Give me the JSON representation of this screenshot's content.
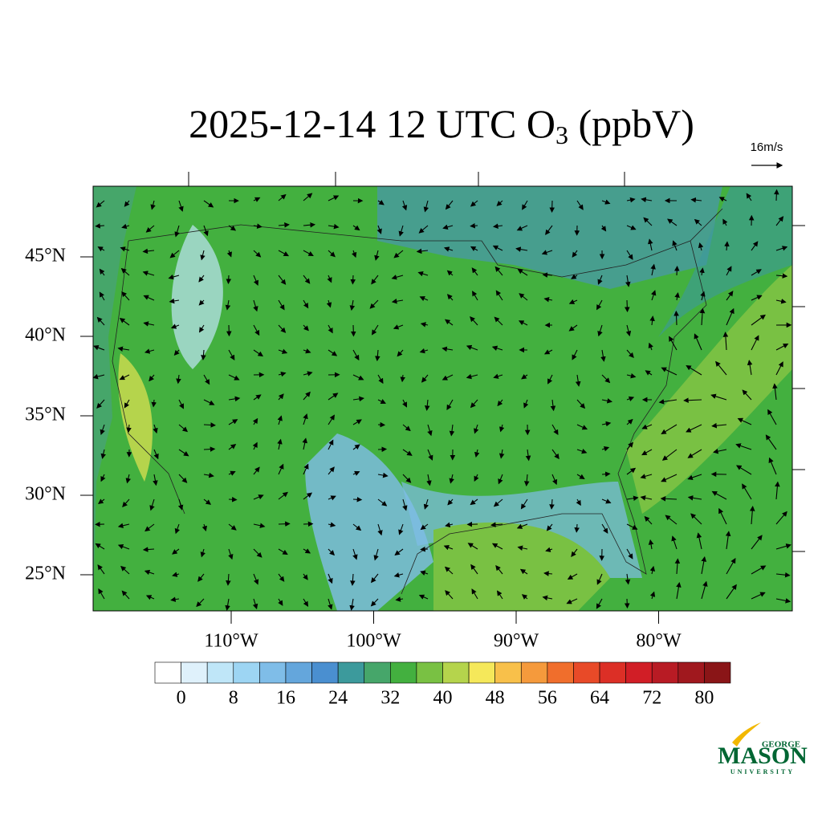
{
  "title": {
    "prefix": "2025-12-14 12 UTC O",
    "subscript": "3",
    "suffix": " (ppbV)"
  },
  "vector_reference": "16m/s",
  "map": {
    "lat_ticks": [
      {
        "value": 45,
        "label": "45°N"
      },
      {
        "value": 40,
        "label": "40°N"
      },
      {
        "value": 35,
        "label": "35°N"
      },
      {
        "value": 30,
        "label": "30°N"
      },
      {
        "value": 25,
        "label": "25°N"
      }
    ],
    "lon_ticks": [
      {
        "value": -110,
        "label": "110°W"
      },
      {
        "value": -100,
        "label": "100°W"
      },
      {
        "value": -90,
        "label": "90°W"
      },
      {
        "value": -80,
        "label": "80°W"
      }
    ]
  },
  "colorbar": {
    "range": [
      -4,
      84
    ],
    "ticks": [
      0,
      8,
      16,
      24,
      32,
      40,
      48,
      56,
      64,
      72,
      80
    ],
    "colors": [
      "#ffffff",
      "#dff1fb",
      "#bfe6f8",
      "#9dd5f3",
      "#7fbde8",
      "#64a6dc",
      "#4a8fd0",
      "#3c9a9c",
      "#46a66a",
      "#43b03f",
      "#79c143",
      "#b5d44c",
      "#f5e85a",
      "#f8c04a",
      "#f59a3c",
      "#f06e2c",
      "#e84a28",
      "#dc2f26",
      "#d11e26",
      "#b81b24",
      "#a0181e",
      "#8a1517"
    ]
  },
  "logo": {
    "top": "GEORGE",
    "main": "MASON",
    "bottom": "UNIVERSITY"
  }
}
